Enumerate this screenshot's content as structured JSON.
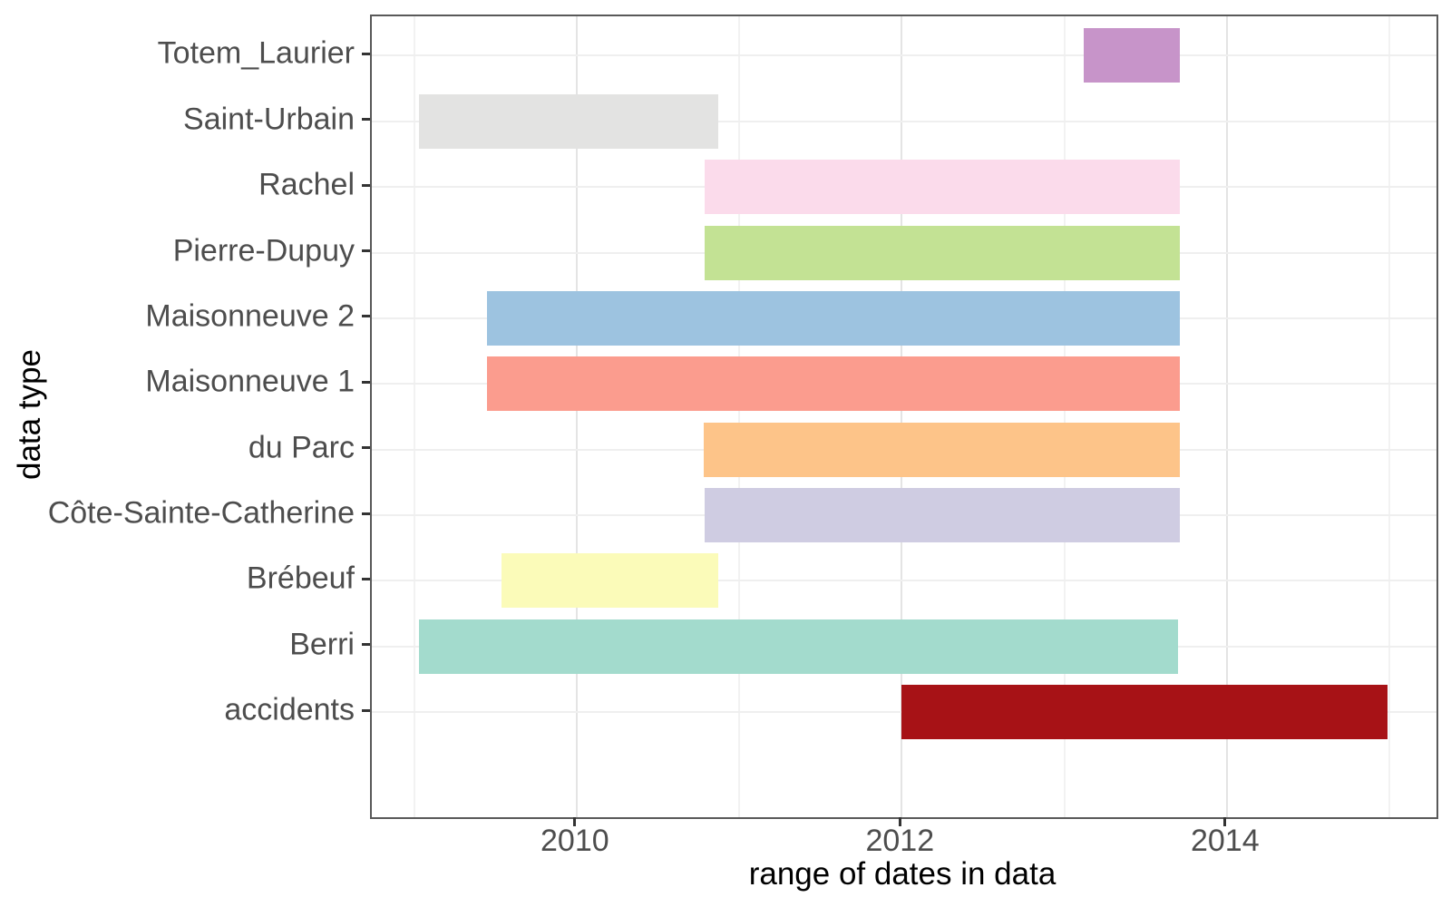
{
  "chart_data": {
    "type": "bar",
    "variant": "horizontal-date-range (gantt)",
    "title": "",
    "xlabel": "range of dates in data",
    "ylabel": "data type",
    "legend": "none",
    "grid": true,
    "xlim": [
      2008.74,
      2015.29
    ],
    "x_major_breaks": [
      2010,
      2012,
      2014
    ],
    "x_tick_labels": [
      "2010",
      "2012",
      "2014"
    ],
    "x_minor_breaks": [
      2009,
      2011,
      2013,
      2015
    ],
    "categories_top_to_bottom": [
      "Totem_Laurier",
      "Saint-Urbain",
      "Rachel",
      "Pierre-Dupuy",
      "Maisonneuve 2",
      "Maisonneuve 1",
      "du Parc",
      "Côte-Sainte-Catherine",
      "Brébeuf",
      "Berri",
      "accidents"
    ],
    "series": [
      {
        "name": "Totem_Laurier",
        "start": 2013.12,
        "end": 2013.71,
        "color": "#C794C9"
      },
      {
        "name": "Saint-Urbain",
        "start": 2009.03,
        "end": 2010.87,
        "color": "#E3E3E2"
      },
      {
        "name": "Rachel",
        "start": 2010.79,
        "end": 2013.71,
        "color": "#FBDBEB"
      },
      {
        "name": "Pierre-Dupuy",
        "start": 2010.79,
        "end": 2013.71,
        "color": "#C3E294"
      },
      {
        "name": "Maisonneuve 2",
        "start": 2009.45,
        "end": 2013.71,
        "color": "#9DC3E0"
      },
      {
        "name": "Maisonneuve 1",
        "start": 2009.45,
        "end": 2013.71,
        "color": "#FB9C8E"
      },
      {
        "name": "du Parc",
        "start": 2010.78,
        "end": 2013.71,
        "color": "#FDC489"
      },
      {
        "name": "Côte-Sainte-Catherine",
        "start": 2010.79,
        "end": 2013.71,
        "color": "#CFCCE2"
      },
      {
        "name": "Brébeuf",
        "start": 2009.54,
        "end": 2010.87,
        "color": "#FBFBB9"
      },
      {
        "name": "Berri",
        "start": 2009.03,
        "end": 2013.7,
        "color": "#A3DBCD"
      },
      {
        "name": "accidents",
        "start": 2012.0,
        "end": 2014.99,
        "color": "#A71216"
      }
    ]
  },
  "colors": {
    "axis_text": "#4D4D4D",
    "axis_title": "#000000",
    "panel_border": "#595959",
    "grid_major": "#E4E4E4",
    "grid_minor": "#F2F2F2",
    "grid_horizontal": "#EFEFEF",
    "tick": "#333333",
    "background": "#FFFFFF"
  }
}
